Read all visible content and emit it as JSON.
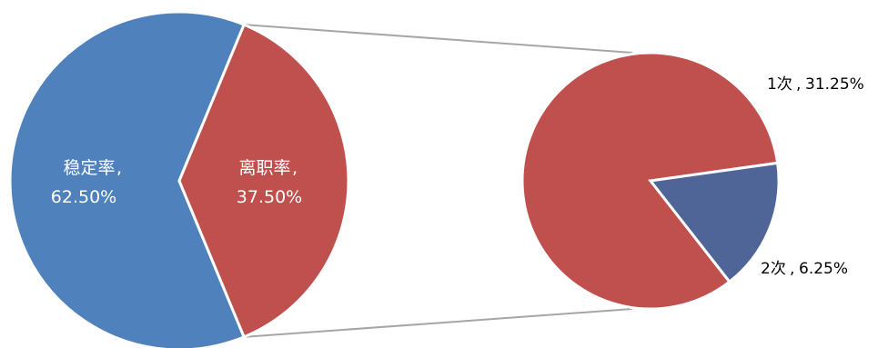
{
  "chart_data": {
    "type": "pie",
    "subtype": "pie-of-pie",
    "main_pie": {
      "slices": [
        {
          "label": "稳定率",
          "percent": "62.50%",
          "value": 62.5,
          "color": "#4F81BD"
        },
        {
          "label": "离职率",
          "percent": "37.50%",
          "value": 37.5,
          "color": "#C0504D"
        }
      ]
    },
    "secondary_pie": {
      "slices": [
        {
          "label": "1次",
          "percent": "31.25%",
          "value": 31.25,
          "color": "#C0504D"
        },
        {
          "label": "2次",
          "percent": "6.25%",
          "value": 6.25,
          "color": "#4F6598"
        }
      ]
    },
    "connector_color": "#A6A6A6",
    "legend": "none"
  }
}
